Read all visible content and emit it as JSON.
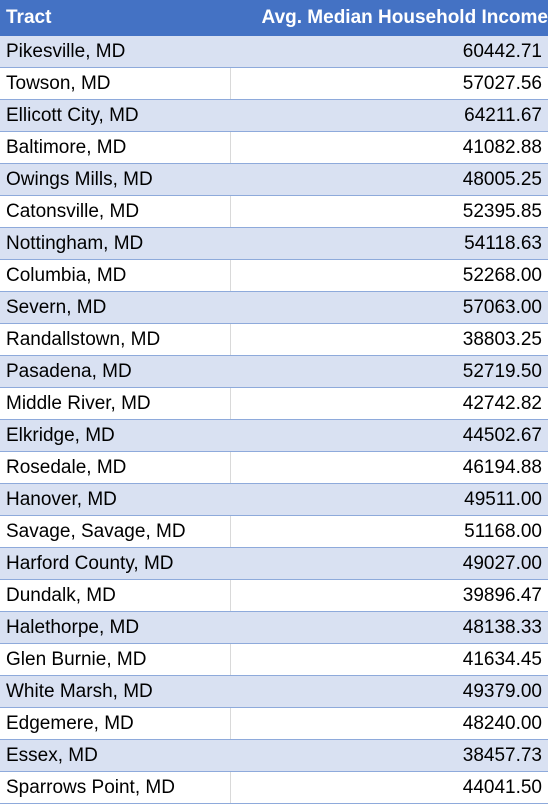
{
  "header": {
    "col1": "Tract",
    "col2": "Avg. Median Household Income"
  },
  "rows": [
    {
      "tract": "Pikesville, MD",
      "income": "60442.71"
    },
    {
      "tract": "Towson, MD",
      "income": "57027.56"
    },
    {
      "tract": "Ellicott City, MD",
      "income": "64211.67"
    },
    {
      "tract": "Baltimore, MD",
      "income": "41082.88"
    },
    {
      "tract": "Owings Mills, MD",
      "income": "48005.25"
    },
    {
      "tract": "Catonsville, MD",
      "income": "52395.85"
    },
    {
      "tract": "Nottingham, MD",
      "income": "54118.63"
    },
    {
      "tract": "Columbia, MD",
      "income": "52268.00"
    },
    {
      "tract": "Severn, MD",
      "income": "57063.00"
    },
    {
      "tract": "Randallstown, MD",
      "income": "38803.25"
    },
    {
      "tract": "Pasadena, MD",
      "income": "52719.50"
    },
    {
      "tract": "Middle River, MD",
      "income": "42742.82"
    },
    {
      "tract": "Elkridge, MD",
      "income": "44502.67"
    },
    {
      "tract": "Rosedale, MD",
      "income": "46194.88"
    },
    {
      "tract": "Hanover, MD",
      "income": "49511.00"
    },
    {
      "tract": "Savage, Savage, MD",
      "income": "51168.00"
    },
    {
      "tract": "Harford County, MD",
      "income": "49027.00"
    },
    {
      "tract": "Dundalk, MD",
      "income": "39896.47"
    },
    {
      "tract": "Halethorpe, MD",
      "income": "48138.33"
    },
    {
      "tract": "Glen Burnie, MD",
      "income": "41634.45"
    },
    {
      "tract": "White Marsh, MD",
      "income": "49379.00"
    },
    {
      "tract": "Edgemere, MD",
      "income": "48240.00"
    },
    {
      "tract": "Essex, MD",
      "income": "38457.73"
    },
    {
      "tract": "Sparrows Point, MD",
      "income": "44041.50"
    }
  ]
}
